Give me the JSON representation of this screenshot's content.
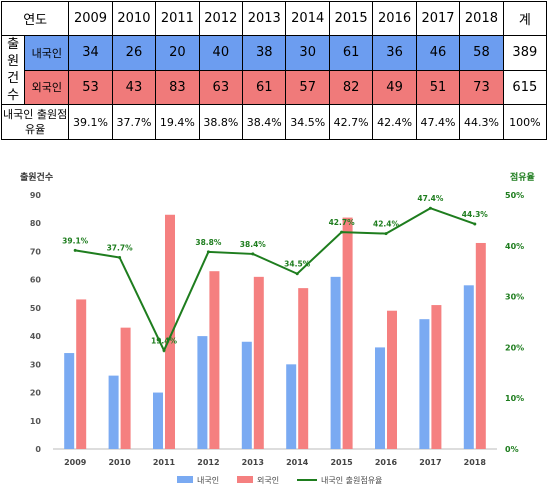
{
  "table": {
    "corner": "연도",
    "years": [
      "2009",
      "2010",
      "2011",
      "2012",
      "2013",
      "2014",
      "2015",
      "2016",
      "2017",
      "2018"
    ],
    "total_header": "계",
    "group_label": "출원건수",
    "rows": [
      {
        "label": "내국인",
        "values": [
          "34",
          "26",
          "20",
          "40",
          "38",
          "30",
          "61",
          "36",
          "46",
          "58"
        ],
        "total": "389"
      },
      {
        "label": "외국인",
        "values": [
          "53",
          "43",
          "83",
          "63",
          "61",
          "57",
          "82",
          "49",
          "51",
          "73"
        ],
        "total": "615"
      }
    ],
    "share_label": "내국인 출원점유율",
    "share_values": [
      "39.1%",
      "37.7%",
      "19.4%",
      "38.8%",
      "38.4%",
      "34.5%",
      "42.7%",
      "42.4%",
      "47.4%",
      "44.3%"
    ],
    "share_total": "100%"
  },
  "chart_data": {
    "type": "bar",
    "categories": [
      "2009",
      "2010",
      "2011",
      "2012",
      "2013",
      "2014",
      "2015",
      "2016",
      "2017",
      "2018"
    ],
    "series": [
      {
        "name": "내국인",
        "type": "bar",
        "axis": "left",
        "color": "#7aaaf2",
        "values": [
          34,
          26,
          20,
          40,
          38,
          30,
          61,
          36,
          46,
          58
        ]
      },
      {
        "name": "외국인",
        "type": "bar",
        "axis": "left",
        "color": "#f58080",
        "values": [
          53,
          43,
          83,
          63,
          61,
          57,
          82,
          49,
          51,
          73
        ]
      },
      {
        "name": "내국인 출원점유율",
        "type": "line",
        "axis": "right",
        "color": "#1e7d1e",
        "values": [
          39.1,
          37.7,
          19.4,
          38.8,
          38.4,
          34.5,
          42.7,
          42.4,
          47.4,
          44.3
        ],
        "labels": [
          "39.1%",
          "37.7%",
          "19.4%",
          "38.8%",
          "38.4%",
          "34.5%",
          "42.7%",
          "42.4%",
          "47.4%",
          "44.3%"
        ]
      }
    ],
    "ylabel": "출원건수",
    "y2label": "점유율",
    "ylim": [
      0,
      90
    ],
    "yticks": [
      "0",
      "10",
      "20",
      "30",
      "40",
      "50",
      "60",
      "70",
      "80",
      "90"
    ],
    "y2lim": [
      0,
      50
    ],
    "y2ticks": [
      "0%",
      "10%",
      "20%",
      "30%",
      "40%",
      "50%"
    ],
    "grid": false,
    "legend": "bottom"
  }
}
